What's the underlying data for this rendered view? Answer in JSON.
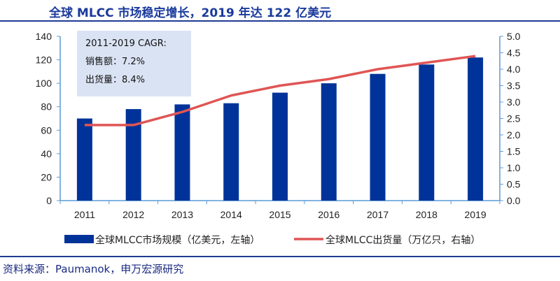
{
  "title": "全球 MLCC 市场稳定增长，2019 年达 122 亿美元",
  "source": "资料来源：Paumanok，申万宏源研究",
  "annotation": [
    "2011-2019 CAGR:",
    "销售额：7.2%",
    "出货量：8.4%"
  ],
  "colors": {
    "bar": "#003399",
    "line": "#e05555",
    "axis": "#5b9bd5",
    "annotation_bg": "#dae3f3",
    "title": "#1a3a9c"
  },
  "chart_data": {
    "type": "bar+line",
    "categories": [
      "2011",
      "2012",
      "2013",
      "2014",
      "2015",
      "2016",
      "2017",
      "2018",
      "2019"
    ],
    "series": [
      {
        "name": "全球MLCC市场规模（亿美元，左轴）",
        "type": "bar",
        "axis": "left",
        "values": [
          70,
          78,
          82,
          83,
          92,
          100,
          108,
          116,
          122
        ]
      },
      {
        "name": "全球MLCC出货量（万亿只，右轴）",
        "type": "line",
        "axis": "right",
        "values": [
          2.3,
          2.3,
          2.7,
          3.2,
          3.5,
          3.7,
          4.0,
          4.2,
          4.4
        ]
      }
    ],
    "ylim_left": [
      0,
      140
    ],
    "yticks_left": [
      "0",
      "20",
      "40",
      "60",
      "80",
      "100",
      "120",
      "140"
    ],
    "ylim_right": [
      0,
      5
    ],
    "yticks_right": [
      "0.0",
      "0.5",
      "1.0",
      "1.5",
      "2.0",
      "2.5",
      "3.0",
      "3.5",
      "4.0",
      "4.5",
      "5.0"
    ],
    "grid": false,
    "legend": "bottom"
  }
}
